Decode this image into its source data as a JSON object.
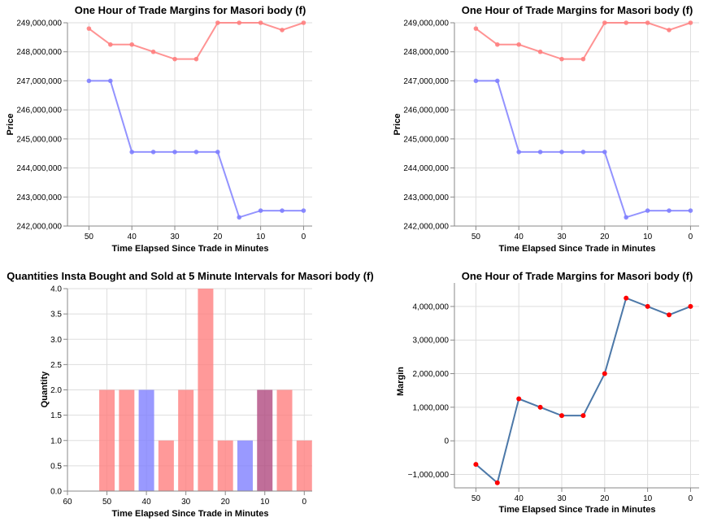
{
  "colors": {
    "sell": "#ff8080",
    "buy": "#8080ff",
    "overlap": "#b04a80",
    "margin_line": "#4c78a8",
    "margin_point": "#ff0000"
  },
  "chart_data": [
    {
      "type": "line",
      "title": "One Hour of Trade Margins for Masori body (f)",
      "xlabel": "Time Elapsed Since Trade in Minutes",
      "ylabel": "Price",
      "x": [
        50,
        45,
        40,
        35,
        30,
        25,
        20,
        15,
        10,
        5,
        0
      ],
      "xlim": [
        55,
        -2
      ],
      "xticks": [
        "50",
        "40",
        "30",
        "20",
        "10",
        "0"
      ],
      "ylim": [
        242000000,
        249000000
      ],
      "yticks": [
        "242,000,000",
        "243,000,000",
        "244,000,000",
        "245,000,000",
        "246,000,000",
        "247,000,000",
        "248,000,000",
        "249,000,000"
      ],
      "grid": true,
      "series": [
        {
          "color": "#ff8080",
          "values": [
            248800000,
            248250000,
            248250000,
            248000000,
            247750000,
            247750000,
            249000000,
            249000000,
            249000000,
            248750000,
            249000000
          ]
        },
        {
          "color": "#8080ff",
          "values": [
            247000000,
            247000000,
            244550000,
            244550000,
            244550000,
            244550000,
            244550000,
            242300000,
            242530000,
            242530000,
            242530000
          ]
        }
      ]
    },
    {
      "type": "line",
      "title": "One Hour of Trade Margins for Masori body (f)",
      "xlabel": "Time Elapsed Since Trade in Minutes",
      "ylabel": "Price",
      "x": [
        50,
        45,
        40,
        35,
        30,
        25,
        20,
        15,
        10,
        5,
        0
      ],
      "xlim": [
        55,
        -2
      ],
      "xticks": [
        "50",
        "40",
        "30",
        "20",
        "10",
        "0"
      ],
      "ylim": [
        242000000,
        249000000
      ],
      "yticks": [
        "242,000,000",
        "243,000,000",
        "244,000,000",
        "245,000,000",
        "246,000,000",
        "247,000,000",
        "248,000,000",
        "249,000,000"
      ],
      "grid": true,
      "series": [
        {
          "color": "#ff8080",
          "values": [
            248800000,
            248250000,
            248250000,
            248000000,
            247750000,
            247750000,
            249000000,
            249000000,
            249000000,
            248750000,
            249000000
          ]
        },
        {
          "color": "#8080ff",
          "values": [
            247000000,
            247000000,
            244550000,
            244550000,
            244550000,
            244550000,
            244550000,
            242300000,
            242530000,
            242530000,
            242530000
          ]
        }
      ]
    },
    {
      "type": "bar",
      "title": "Quantities Insta Bought and Sold at 5 Minute Intervals for Masori body (f)",
      "xlabel": "Time Elapsed Since Trade in Minutes",
      "ylabel": "Quantity",
      "xlim": [
        60,
        -2
      ],
      "xticks": [
        "60",
        "50",
        "40",
        "30",
        "20",
        "10",
        "0"
      ],
      "ylim": [
        0,
        4
      ],
      "yticks": [
        "0.0",
        "0.5",
        "1.0",
        "1.5",
        "2.0",
        "2.5",
        "3.0",
        "3.5",
        "4.0"
      ],
      "grid": true,
      "bars": [
        {
          "x": 50,
          "value": 2,
          "color": "#ff8080"
        },
        {
          "x": 45,
          "value": 2,
          "color": "#ff8080"
        },
        {
          "x": 40,
          "value": 2,
          "color": "#8080ff"
        },
        {
          "x": 35,
          "value": 1,
          "color": "#ff8080"
        },
        {
          "x": 30,
          "value": 2,
          "color": "#ff8080"
        },
        {
          "x": 25,
          "value": 4,
          "color": "#ff8080"
        },
        {
          "x": 20,
          "value": 1,
          "color": "#ff8080"
        },
        {
          "x": 15,
          "value": 1,
          "color": "#8080ff"
        },
        {
          "x": 10,
          "value": 2,
          "color": "#b04a80"
        },
        {
          "x": 5,
          "value": 2,
          "color": "#ff8080"
        },
        {
          "x": 0,
          "value": 1,
          "color": "#ff8080"
        }
      ]
    },
    {
      "type": "line",
      "title": "One Hour of Trade Margins for Masori body (f)",
      "xlabel": "Time Elapsed Since Trade in Minutes",
      "ylabel": "Margin",
      "x": [
        50,
        45,
        40,
        35,
        30,
        25,
        20,
        15,
        10,
        5,
        0
      ],
      "xlim": [
        55,
        -2
      ],
      "xticks": [
        "50",
        "40",
        "30",
        "20",
        "10",
        "0"
      ],
      "ylim": [
        -1400000,
        4700000
      ],
      "yticks": [
        "−1,000,000",
        "0",
        "1,000,000",
        "2,000,000",
        "3,000,000",
        "4,000,000"
      ],
      "ytick_values": [
        -1000000,
        0,
        1000000,
        2000000,
        3000000,
        4000000
      ],
      "grid": true,
      "series": [
        {
          "color": "#4c78a8",
          "point_color": "#ff0000",
          "values": [
            -700000,
            -1250000,
            1250000,
            1000000,
            750000,
            750000,
            2000000,
            4250000,
            4000000,
            3750000,
            4000000
          ]
        }
      ]
    }
  ]
}
